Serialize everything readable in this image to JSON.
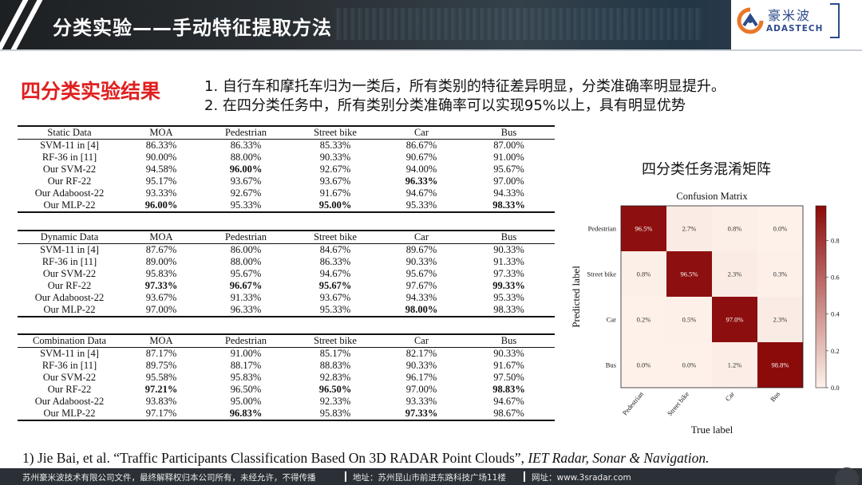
{
  "header": {
    "title": "分类实验——手动特征提取方法",
    "logo_cn": "豪米波",
    "logo_en": "ADASTECH"
  },
  "section": {
    "title": "四分类实验结果",
    "points": [
      "1.  自行车和摩托车归为一类后，所有类别的特征差异明显，分类准确率明显提升。",
      "2.  在四分类任务中，所有类别分类准确率可以实现95%以上，具有明显优势"
    ]
  },
  "tables": [
    {
      "headers": [
        "Static Data",
        "MOA",
        "Pedestrian",
        "Street bike",
        "Car",
        "Bus"
      ],
      "rows": [
        {
          "cells": [
            "SVM-11 in [4]",
            "86.33%",
            "86.33%",
            "85.33%",
            "86.67%",
            "87.00%"
          ],
          "bold": []
        },
        {
          "cells": [
            "RF-36 in [11]",
            "90.00%",
            "88.00%",
            "90.33%",
            "90.67%",
            "91.00%"
          ],
          "bold": []
        },
        {
          "cells": [
            "Our SVM-22",
            "94.58%",
            "96.00%",
            "92.67%",
            "94.00%",
            "95.67%"
          ],
          "bold": [
            2
          ]
        },
        {
          "cells": [
            "Our RF-22",
            "95.17%",
            "93.67%",
            "93.67%",
            "96.33%",
            "97.00%"
          ],
          "bold": [
            4
          ]
        },
        {
          "cells": [
            "Our Adaboost-22",
            "93.33%",
            "92.67%",
            "91.67%",
            "94.67%",
            "94.33%"
          ],
          "bold": []
        },
        {
          "cells": [
            "Our MLP-22",
            "96.00%",
            "95.33%",
            "95.00%",
            "95.33%",
            "98.33%"
          ],
          "bold": [
            1,
            3,
            5
          ]
        }
      ]
    },
    {
      "headers": [
        "Dynamic Data",
        "MOA",
        "Pedestrian",
        "Street bike",
        "Car",
        "Bus"
      ],
      "rows": [
        {
          "cells": [
            "SVM-11 in [4]",
            "87.67%",
            "86.00%",
            "84.67%",
            "89.67%",
            "90.33%"
          ],
          "bold": []
        },
        {
          "cells": [
            "RF-36 in [11]",
            "89.00%",
            "88.00%",
            "86.33%",
            "90.33%",
            "91.33%"
          ],
          "bold": []
        },
        {
          "cells": [
            "Our SVM-22",
            "95.83%",
            "95.67%",
            "94.67%",
            "95.67%",
            "97.33%"
          ],
          "bold": []
        },
        {
          "cells": [
            "Our RF-22",
            "97.33%",
            "96.67%",
            "95.67%",
            "97.67%",
            "99.33%"
          ],
          "bold": [
            1,
            2,
            3,
            5
          ]
        },
        {
          "cells": [
            "Our Adaboost-22",
            "93.67%",
            "91.33%",
            "93.67%",
            "94.33%",
            "95.33%"
          ],
          "bold": []
        },
        {
          "cells": [
            "Our MLP-22",
            "97.00%",
            "96.33%",
            "95.33%",
            "98.00%",
            "98.33%"
          ],
          "bold": [
            4
          ]
        }
      ]
    },
    {
      "headers": [
        "Combination Data",
        "MOA",
        "Pedestrian",
        "Street bike",
        "Car",
        "Bus"
      ],
      "rows": [
        {
          "cells": [
            "SVM-11 in [4]",
            "87.17%",
            "91.00%",
            "85.17%",
            "82.17%",
            "90.33%"
          ],
          "bold": []
        },
        {
          "cells": [
            "RF-36 in [11]",
            "89.75%",
            "88.17%",
            "88.83%",
            "90.33%",
            "91.67%"
          ],
          "bold": []
        },
        {
          "cells": [
            "Our SVM-22",
            "95.58%",
            "95.83%",
            "92.83%",
            "96.17%",
            "97.50%"
          ],
          "bold": []
        },
        {
          "cells": [
            "Our RF-22",
            "97.21%",
            "96.50%",
            "96.50%",
            "97.00%",
            "98.83%"
          ],
          "bold": [
            1,
            3,
            5
          ]
        },
        {
          "cells": [
            "Our Adaboost-22",
            "93.83%",
            "95.00%",
            "92.33%",
            "93.33%",
            "94.67%"
          ],
          "bold": []
        },
        {
          "cells": [
            "Our MLP-22",
            "97.17%",
            "96.83%",
            "95.83%",
            "97.33%",
            "98.67%"
          ],
          "bold": [
            2,
            4
          ]
        }
      ]
    }
  ],
  "confusion": {
    "caption": "四分类任务混淆矩阵",
    "title": "Confusion Matrix",
    "xlabel": "True label",
    "ylabel": "Predicted label",
    "labels": [
      "Pedestrian",
      "Street bike",
      "Car",
      "Bus"
    ],
    "values": [
      [
        96.5,
        2.7,
        0.8,
        0.0
      ],
      [
        0.8,
        96.5,
        2.3,
        0.3
      ],
      [
        0.2,
        0.5,
        97.0,
        2.3
      ],
      [
        0.0,
        0.0,
        1.2,
        98.8
      ]
    ],
    "value_text": [
      [
        "96.5%",
        "2.7%",
        "0.8%",
        "0.0%"
      ],
      [
        "0.8%",
        "96.5%",
        "2.3%",
        "0.3%"
      ],
      [
        "0.2%",
        "0.5%",
        "97.0%",
        "2.3%"
      ],
      [
        "0.0%",
        "0.0%",
        "1.2%",
        "98.8%"
      ]
    ],
    "colorbar_ticks": [
      "0.0",
      "0.2",
      "0.4",
      "0.6",
      "0.8"
    ],
    "colors": {
      "low": "#fdf1ea",
      "high": "#8b0a0a"
    }
  },
  "reference": {
    "prefix": "1) Jie Bai, et al. “Traffic Participants Classification Based On 3D RADAR Point Clouds”, ",
    "journal": "IET Radar, Sonar & Navigation."
  },
  "footer": {
    "left": "苏州豪米波技术有限公司文件，最终解释权归本公司所有，未经允许，不得传播",
    "address": "地址：苏州昆山市前进东路科技广场11楼",
    "site": "网址：www.3sradar.com"
  }
}
